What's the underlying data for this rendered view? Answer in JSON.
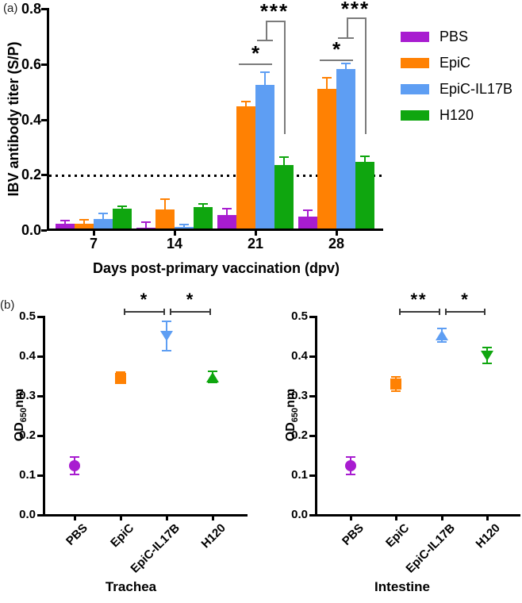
{
  "panels": {
    "a": "(a)",
    "b": "(b)"
  },
  "colors": {
    "PBS": "#A81CD0",
    "EpiC": "#FF8103",
    "EpiC-IL17B": "#5E9EF3",
    "H120": "#0FA60F"
  },
  "legend": {
    "items": [
      {
        "label": "PBS"
      },
      {
        "label": "EpiC"
      },
      {
        "label": "EpiC-IL17B"
      },
      {
        "label": "H120"
      }
    ]
  },
  "chart_data": [
    {
      "type": "bar",
      "panel": "a",
      "ylabel": "IBV antibody titer (S/P)",
      "xlabel": "Days post-primary vaccination (dpv)",
      "ylim": [
        0,
        0.8
      ],
      "yticks": [
        "0.0",
        "0.2",
        "0.4",
        "0.6",
        "0.8"
      ],
      "categories": [
        "7",
        "14",
        "21",
        "28"
      ],
      "series": [
        {
          "name": "PBS",
          "values": [
            0.022,
            0.01,
            0.055,
            0.048
          ],
          "errors": [
            0.012,
            0.02,
            0.023,
            0.024
          ]
        },
        {
          "name": "EpiC",
          "values": [
            0.022,
            0.075,
            0.447,
            0.51
          ],
          "errors": [
            0.015,
            0.037,
            0.018,
            0.04
          ]
        },
        {
          "name": "EpiC-IL17B",
          "values": [
            0.04,
            0.012,
            0.525,
            0.582
          ],
          "errors": [
            0.02,
            0.008,
            0.045,
            0.021
          ]
        },
        {
          "name": "H120",
          "values": [
            0.078,
            0.083,
            0.235,
            0.247
          ],
          "errors": [
            0.008,
            0.012,
            0.029,
            0.021
          ]
        }
      ],
      "reference_line": 0.2,
      "significance": [
        {
          "category": "21",
          "label": "*",
          "pair": [
            "EpiC",
            "EpiC-IL17B"
          ],
          "style": "bar"
        },
        {
          "category": "21",
          "label": "***",
          "pair": [
            "EpiC-IL17B",
            "H120"
          ],
          "style": "step"
        },
        {
          "category": "28",
          "label": "*",
          "pair": [
            "EpiC",
            "EpiC-IL17B"
          ],
          "style": "bar"
        },
        {
          "category": "28",
          "label": "***",
          "pair": [
            "EpiC-IL17B",
            "H120"
          ],
          "style": "step"
        }
      ]
    },
    {
      "type": "scatter",
      "panel": "b",
      "title": "Trachea",
      "ylabel": {
        "base": "OD",
        "sub": "650",
        "suffix": "nm"
      },
      "ylim": [
        0,
        0.5
      ],
      "yticks": [
        "0.0",
        "0.1",
        "0.2",
        "0.3",
        "0.4",
        "0.5"
      ],
      "categories": [
        "PBS",
        "EpiC",
        "EpiC-IL17B",
        "H120"
      ],
      "points": [
        {
          "name": "PBS",
          "marker": "circle",
          "value": 0.122,
          "err_low": 0.1,
          "err_high": 0.145
        },
        {
          "name": "EpiC",
          "marker": "square",
          "value": 0.343,
          "err_low": 0.33,
          "err_high": 0.358
        },
        {
          "name": "EpiC-IL17B",
          "marker": "triangle-down",
          "value": 0.45,
          "err_low": 0.412,
          "err_high": 0.486
        },
        {
          "name": "H120",
          "marker": "triangle-up",
          "value": 0.345,
          "err_low": 0.333,
          "err_high": 0.361
        }
      ],
      "significance": [
        {
          "label": "*",
          "pair": [
            "EpiC",
            "EpiC-IL17B"
          ]
        },
        {
          "label": "*",
          "pair": [
            "EpiC-IL17B",
            "H120"
          ]
        }
      ]
    },
    {
      "type": "scatter",
      "panel": "b",
      "title": "Intestine",
      "ylabel": {
        "base": "OD",
        "sub": "650",
        "suffix": "nm"
      },
      "ylim": [
        0,
        0.5
      ],
      "yticks": [
        "0.0",
        "0.1",
        "0.2",
        "0.3",
        "0.4",
        "0.5"
      ],
      "categories": [
        "PBS",
        "EpiC",
        "EpiC-IL17B",
        "H120"
      ],
      "points": [
        {
          "name": "PBS",
          "marker": "circle",
          "value": 0.123,
          "err_low": 0.1,
          "err_high": 0.145
        },
        {
          "name": "EpiC",
          "marker": "square",
          "value": 0.328,
          "err_low": 0.31,
          "err_high": 0.347
        },
        {
          "name": "EpiC-IL17B",
          "marker": "triangle-up",
          "value": 0.45,
          "err_low": 0.434,
          "err_high": 0.468
        },
        {
          "name": "H120",
          "marker": "triangle-down",
          "value": 0.401,
          "err_low": 0.381,
          "err_high": 0.42
        }
      ],
      "significance": [
        {
          "label": "**",
          "pair": [
            "EpiC",
            "EpiC-IL17B"
          ]
        },
        {
          "label": "*",
          "pair": [
            "EpiC-IL17B",
            "H120"
          ]
        }
      ]
    }
  ]
}
